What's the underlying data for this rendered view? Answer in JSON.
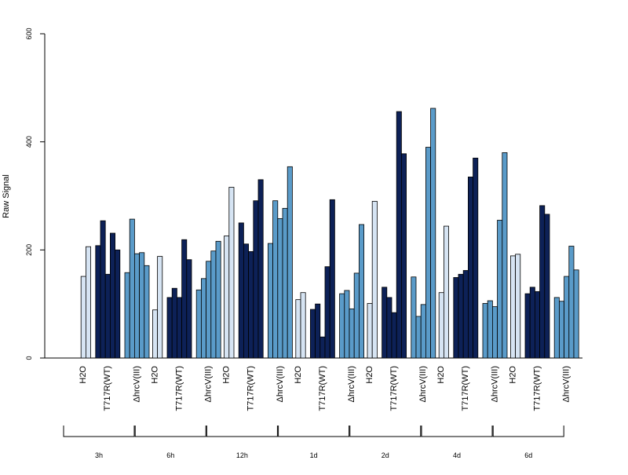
{
  "chart_data": {
    "type": "bar",
    "title": "",
    "xlabel": "",
    "ylabel": "Raw Signal",
    "ylim": [
      0,
      600
    ],
    "yticks": [
      0,
      200,
      400,
      600
    ],
    "grid": false,
    "legend": "none",
    "bar_border_color": "#000000",
    "groups": [
      {
        "label": "3h",
        "conditions": [
          {
            "label": "H2O",
            "color": "#d6e4f3",
            "values": [
              0,
              151,
              206
            ]
          },
          {
            "label": "T717R(WT)",
            "color": "#0d2157",
            "values": [
              208,
              254,
              155,
              231,
              200
            ]
          },
          {
            "label": "ΔhrcV(III)",
            "color": "#5a9bc9",
            "values": [
              158,
              257,
              193,
              195,
              171
            ]
          }
        ]
      },
      {
        "label": "6h",
        "conditions": [
          {
            "label": "H2O",
            "color": "#d6e4f3",
            "values": [
              0,
              89,
              188
            ]
          },
          {
            "label": "T717R(WT)",
            "color": "#0d2157",
            "values": [
              112,
              129,
              112,
              219,
              182
            ]
          },
          {
            "label": "ΔhrcV(III)",
            "color": "#5a9bc9",
            "values": [
              126,
              147,
              179,
              198,
              216
            ]
          }
        ]
      },
      {
        "label": "12h",
        "conditions": [
          {
            "label": "H2O",
            "color": "#d6e4f3",
            "values": [
              0,
              226,
              316
            ]
          },
          {
            "label": "T717R(WT)",
            "color": "#0d2157",
            "values": [
              250,
              211,
              197,
              291,
              330
            ]
          },
          {
            "label": "ΔhrcV(III)",
            "color": "#5a9bc9",
            "values": [
              212,
              291,
              258,
              277,
              354
            ]
          }
        ]
      },
      {
        "label": "1d",
        "conditions": [
          {
            "label": "H2O",
            "color": "#d6e4f3",
            "values": [
              0,
              108,
              121
            ]
          },
          {
            "label": "T717R(WT)",
            "color": "#0d2157",
            "values": [
              90,
              100,
              39,
              169,
              293
            ]
          },
          {
            "label": "ΔhrcV(III)",
            "color": "#5a9bc9",
            "values": [
              119,
              125,
              91,
              157,
              247
            ]
          }
        ]
      },
      {
        "label": "2d",
        "conditions": [
          {
            "label": "H2O",
            "color": "#d6e4f3",
            "values": [
              0,
              101,
              290
            ]
          },
          {
            "label": "T717R(WT)",
            "color": "#0d2157",
            "values": [
              131,
              112,
              84,
              456,
              378
            ]
          },
          {
            "label": "ΔhrcV(III)",
            "color": "#5a9bc9",
            "values": [
              150,
              77,
              99,
              390,
              462
            ]
          }
        ]
      },
      {
        "label": "4d",
        "conditions": [
          {
            "label": "H2O",
            "color": "#d6e4f3",
            "values": [
              0,
              121,
              244
            ]
          },
          {
            "label": "T717R(WT)",
            "color": "#0d2157",
            "values": [
              149,
              155,
              162,
              335,
              370
            ]
          },
          {
            "label": "ΔhrcV(III)",
            "color": "#5a9bc9",
            "values": [
              101,
              106,
              95,
              255,
              380
            ]
          }
        ]
      },
      {
        "label": "6d",
        "conditions": [
          {
            "label": "H2O",
            "color": "#d6e4f3",
            "values": [
              0,
              189,
              192
            ]
          },
          {
            "label": "T717R(WT)",
            "color": "#0d2157",
            "values": [
              119,
              131,
              123,
              282,
              266
            ]
          },
          {
            "label": "ΔhrcV(III)",
            "color": "#5a9bc9",
            "values": [
              112,
              105,
              151,
              207,
              163
            ]
          }
        ]
      }
    ]
  }
}
